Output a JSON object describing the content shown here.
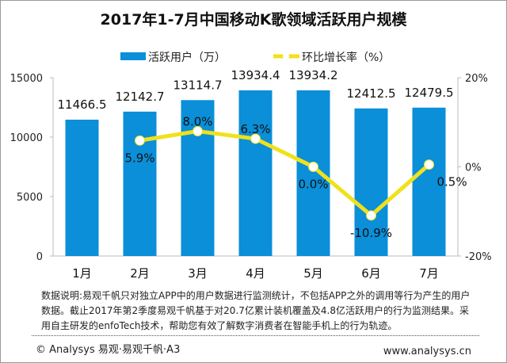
{
  "chart_data": {
    "type": "bar+line",
    "title": "2017年1-7月中国移动K歌领域活跃用户规模",
    "categories": [
      "1月",
      "2月",
      "3月",
      "4月",
      "5月",
      "6月",
      "7月"
    ],
    "series": [
      {
        "name": "活跃用户（万）",
        "type": "bar",
        "axis": "left",
        "color": "#0a8fd8",
        "values": [
          11466.5,
          12142.7,
          13114.7,
          13934.4,
          13934.2,
          12412.5,
          12479.5
        ],
        "labels": [
          "11466.5",
          "12142.7",
          "13114.7",
          "13934.4",
          "13934.2",
          "12412.5",
          "12479.5"
        ]
      },
      {
        "name": "环比增长率（%）",
        "type": "line",
        "axis": "right",
        "color": "#f0e11c",
        "values": [
          null,
          5.9,
          8.0,
          6.3,
          0.0,
          -10.9,
          0.5
        ],
        "labels": [
          "",
          "5.9%",
          "8.0%",
          "6.3%",
          "0.0%",
          "-10.9%",
          "0.5%"
        ]
      }
    ],
    "left_axis": {
      "min": 0,
      "max": 15000,
      "ticks": [
        "0",
        "5000",
        "10000",
        "15000"
      ]
    },
    "right_axis": {
      "min": -20,
      "max": 20,
      "ticks": [
        "-20%",
        "0%",
        "20%"
      ]
    },
    "legend_position": "top",
    "grid": false
  },
  "note": "数据说明:易观千帆只对独立APP中的用户数据进行监测统计，不包括APP之外的调用等行为产生的用户数据。截止2017年第2季度易观千帆基于对20.7亿累计装机覆盖及4.8亿活跃用户的行为监测结果。采用自主研发的enfoTech技术，帮助您有效了解数字消费者在智能手机上的行为轨迹。",
  "footer": {
    "copyright": "© Analysys 易观·易观千帆·A3",
    "url": "www.analysys.cn"
  }
}
